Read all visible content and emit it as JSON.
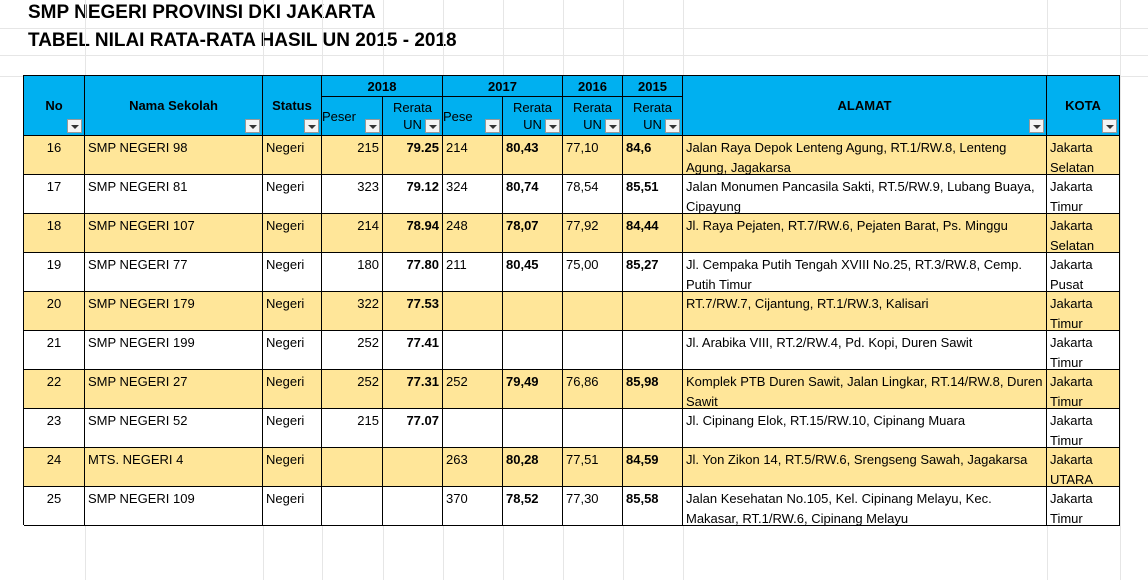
{
  "header": {
    "title1": "SMP NEGERI PROVINSI DKI JAKARTA",
    "title2": "TABEL NILAI RATA-RATA HASIL UN 2015 - 2018"
  },
  "table": {
    "columns": {
      "no": "No",
      "nama": "Nama Sekolah",
      "status": "Status",
      "year2018": "2018",
      "year2017": "2017",
      "year2016": "2016",
      "year2015": "2015",
      "peserta2018": "Peser",
      "rerata2018": "Rerata UN",
      "peserta2017": "Pese",
      "rerata2017": "Rerata UN",
      "rerata2016": "Rerata UN",
      "rerata2015": "Rerata UN",
      "alamat": "ALAMAT",
      "kota": "KOTA"
    },
    "rows": [
      [
        "16",
        "SMP NEGERI 98",
        "Negeri",
        "215",
        "79.25",
        "214",
        "80,43",
        "77,10",
        "84,6",
        "Jalan Raya Depok Lenteng Agung, RT.1/RW.8, Lenteng Agung, Jagakarsa",
        "Jakarta Selatan"
      ],
      [
        "17",
        "SMP NEGERI 81",
        "Negeri",
        "323",
        "79.12",
        "324",
        "80,74",
        "78,54",
        "85,51",
        "Jalan Monumen Pancasila Sakti, RT.5/RW.9, Lubang Buaya, Cipayung",
        "Jakarta Timur"
      ],
      [
        "18",
        "SMP NEGERI 107",
        "Negeri",
        "214",
        "78.94",
        "248",
        "78,07",
        "77,92",
        "84,44",
        "Jl. Raya Pejaten, RT.7/RW.6, Pejaten Barat, Ps. Minggu",
        "Jakarta Selatan"
      ],
      [
        "19",
        "SMP NEGERI 77",
        "Negeri",
        "180",
        "77.80",
        "211",
        "80,45",
        "75,00",
        "85,27",
        "Jl. Cempaka Putih Tengah XVIII No.25, RT.3/RW.8, Cemp. Putih Timur",
        "Jakarta Pusat"
      ],
      [
        "20",
        "SMP NEGERI 179",
        "Negeri",
        "322",
        "77.53",
        null,
        null,
        null,
        null,
        "RT.7/RW.7, Cijantung, RT.1/RW.3, Kalisari",
        "Jakarta Timur"
      ],
      [
        "21",
        "SMP NEGERI 199",
        "Negeri",
        "252",
        "77.41",
        null,
        null,
        null,
        null,
        "Jl. Arabika VIII, RT.2/RW.4, Pd. Kopi, Duren Sawit",
        "Jakarta Timur"
      ],
      [
        "22",
        "SMP NEGERI 27",
        "Negeri",
        "252",
        "77.31",
        "252",
        "79,49",
        "76,86",
        "85,98",
        "Komplek PTB Duren Sawit, Jalan Lingkar, RT.14/RW.8, Duren Sawit",
        "Jakarta Timur"
      ],
      [
        "23",
        "SMP NEGERI 52",
        "Negeri",
        "215",
        "77.07",
        null,
        null,
        null,
        null,
        "Jl. Cipinang Elok, RT.15/RW.10, Cipinang Muara",
        "Jakarta Timur"
      ],
      [
        "24",
        "MTS. NEGERI 4",
        "Negeri",
        null,
        null,
        "263",
        "80,28",
        "77,51",
        "84,59",
        "Jl. Yon Zikon 14, RT.5/RW.6, Srengseng Sawah, Jagakarsa",
        "Jakarta UTARA"
      ],
      [
        "25",
        "SMP NEGERI 109",
        "Negeri",
        null,
        null,
        "370",
        "78,52",
        "77,30",
        "85,58",
        "Jalan Kesehatan No.105, Kel. Cipinang Melayu, Kec. Makasar, RT.1/RW.6, Cipinang Melayu",
        "Jakarta Timur"
      ]
    ]
  }
}
